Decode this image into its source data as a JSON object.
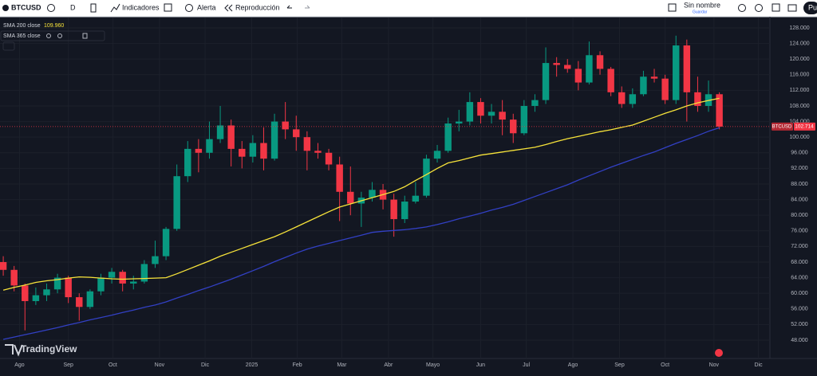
{
  "toolbar": {
    "symbol": "BTCUSD",
    "interval": "D",
    "indicators": "Indicadores",
    "alert": "Alerta",
    "replay": "Reproducción",
    "layout_name": "Sin nombre",
    "save": "Guardar",
    "publish": "Pu"
  },
  "watermark": "TradingView",
  "chart_data": {
    "type": "candlestick",
    "symbol": "BTCUSD",
    "up_color": "#089981",
    "down_color": "#f23645",
    "last_price": {
      "value": 102714,
      "label": "102.714"
    },
    "open": [
      68000,
      66000,
      62000,
      58000,
      59500,
      61000,
      64000,
      59000,
      56500,
      60500,
      64000,
      65500,
      62500,
      63000,
      67500,
      69500,
      76500,
      90000,
      97000,
      96000,
      99500,
      103000,
      97000,
      95000,
      98500,
      94500,
      104000,
      102000,
      100000,
      96500,
      96000,
      93000,
      86000,
      83000,
      84500,
      86500,
      84000,
      79000,
      83500,
      85000,
      94500,
      96500,
      103500,
      104000,
      109000,
      105500,
      106500,
      104500,
      101000,
      108000,
      109500,
      119000,
      118500,
      117500,
      114000,
      121000,
      117500,
      111500,
      108500,
      111000,
      115500,
      115000,
      109500,
      123500,
      111500,
      108000,
      111000
    ],
    "high": [
      69500,
      67000,
      62500,
      61500,
      62500,
      65000,
      64500,
      60000,
      61000,
      65000,
      66500,
      66000,
      64500,
      68500,
      73500,
      77000,
      93000,
      99000,
      99500,
      104000,
      108000,
      104500,
      99000,
      100500,
      102500,
      106000,
      109000,
      105500,
      101500,
      98500,
      97000,
      95000,
      92500,
      86000,
      88500,
      88000,
      85500,
      85000,
      88500,
      95500,
      98000,
      105000,
      107000,
      111500,
      110000,
      108500,
      109500,
      106000,
      109500,
      111000,
      123000,
      120500,
      120000,
      119500,
      124500,
      122000,
      118000,
      113000,
      112500,
      117000,
      117500,
      116000,
      126000,
      125000,
      115500,
      114500,
      111500
    ],
    "low": [
      64500,
      60500,
      50500,
      57000,
      58000,
      60000,
      57500,
      53000,
      56000,
      59500,
      62500,
      60500,
      61000,
      62500,
      66500,
      68500,
      76000,
      88500,
      91000,
      94500,
      98500,
      92500,
      92000,
      93500,
      91500,
      94000,
      99500,
      96500,
      91500,
      94500,
      91500,
      78500,
      80000,
      77000,
      83500,
      81500,
      74500,
      78000,
      83000,
      84500,
      93500,
      96000,
      101500,
      103000,
      103500,
      103500,
      100500,
      98500,
      100500,
      106500,
      108500,
      115500,
      116500,
      112000,
      113500,
      116000,
      110500,
      107500,
      107500,
      110500,
      114000,
      108500,
      108500,
      104000,
      106500,
      106500,
      102000
    ],
    "close": [
      66000,
      62000,
      58000,
      59500,
      61000,
      64000,
      59000,
      56500,
      60500,
      64000,
      65500,
      62500,
      63000,
      67500,
      69500,
      76500,
      90000,
      97000,
      96000,
      99500,
      103000,
      97000,
      95000,
      98500,
      94500,
      104000,
      102000,
      100000,
      96500,
      96000,
      93000,
      86000,
      83000,
      84500,
      86500,
      84000,
      79000,
      83500,
      85000,
      94500,
      96500,
      103500,
      104000,
      109000,
      105500,
      106500,
      104500,
      101000,
      108000,
      109500,
      119000,
      118500,
      117500,
      114000,
      121000,
      117500,
      111500,
      108500,
      111000,
      115500,
      115000,
      109500,
      123500,
      111500,
      108000,
      111000,
      102714
    ],
    "series": [
      {
        "name": "SMA 200 close",
        "color": "#f7e33a",
        "current_value": {
          "value": 109960,
          "label": "109.960"
        },
        "values": [
          60800,
          61500,
          62100,
          62800,
          63200,
          63500,
          63900,
          64200,
          64100,
          63900,
          63700,
          63600,
          63700,
          63800,
          63900,
          64000,
          65000,
          66100,
          67200,
          68300,
          69500,
          70500,
          71500,
          72500,
          73500,
          74500,
          75700,
          77000,
          78300,
          79600,
          80900,
          82100,
          82900,
          83700,
          84500,
          85300,
          86100,
          87300,
          88900,
          90400,
          92000,
          93400,
          94000,
          94700,
          95400,
          95800,
          96200,
          96600,
          97000,
          97400,
          98100,
          98900,
          99600,
          100200,
          100800,
          101400,
          101900,
          102500,
          103100,
          104100,
          105100,
          106100,
          107000,
          108000,
          108800,
          109400,
          109960
        ]
      },
      {
        "name": "SMA 365 close",
        "color": "#3240c4",
        "values": [
          48200,
          48800,
          49400,
          50000,
          50600,
          51200,
          51900,
          52500,
          53200,
          53800,
          54400,
          55100,
          55700,
          56400,
          57000,
          57800,
          58800,
          59700,
          60700,
          61600,
          62600,
          63600,
          64700,
          65800,
          66900,
          68100,
          69200,
          70300,
          71300,
          72100,
          72800,
          73500,
          74200,
          74900,
          75600,
          75900,
          76100,
          76300,
          76600,
          77000,
          77600,
          78300,
          79100,
          79800,
          80500,
          81300,
          82000,
          82800,
          83800,
          84800,
          85800,
          86800,
          87800,
          89000,
          90100,
          91200,
          92300,
          93300,
          94300,
          95300,
          96200,
          97300,
          98400,
          99400,
          100400,
          101500,
          102400
        ]
      }
    ],
    "xlim": [
      -0.3,
      70.66
    ],
    "xticks": [
      {
        "value": 1.5,
        "label": "Ago"
      },
      {
        "value": 6,
        "label": "Sep"
      },
      {
        "value": 10.1,
        "label": "Oct"
      },
      {
        "value": 14.4,
        "label": "Nov"
      },
      {
        "value": 18.6,
        "label": "Dic"
      },
      {
        "value": 22.9,
        "label": "2025"
      },
      {
        "value": 27.1,
        "label": "Feb"
      },
      {
        "value": 31.2,
        "label": "Mar"
      },
      {
        "value": 35.5,
        "label": "Abr"
      },
      {
        "value": 39.6,
        "label": "Mayo"
      },
      {
        "value": 44,
        "label": "Jun"
      },
      {
        "value": 48.2,
        "label": "Jul"
      },
      {
        "value": 52.5,
        "label": "Ago"
      },
      {
        "value": 56.8,
        "label": "Sep"
      },
      {
        "value": 61,
        "label": "Oct"
      },
      {
        "value": 65.5,
        "label": "Nov"
      },
      {
        "value": 69.6,
        "label": "Dic"
      }
    ],
    "ylim": [
      43300,
      130650
    ],
    "yticks": [
      {
        "value": 48000,
        "label": "48.000"
      },
      {
        "value": 52000,
        "label": "52.000"
      },
      {
        "value": 56000,
        "label": "56.000"
      },
      {
        "value": 60000,
        "label": "60.000"
      },
      {
        "value": 64000,
        "label": "64.000"
      },
      {
        "value": 68000,
        "label": "68.000"
      },
      {
        "value": 72000,
        "label": "72.000"
      },
      {
        "value": 76000,
        "label": "76.000"
      },
      {
        "value": 80000,
        "label": "80.000"
      },
      {
        "value": 84000,
        "label": "84.000"
      },
      {
        "value": 88000,
        "label": "88.000"
      },
      {
        "value": 92000,
        "label": "92.000"
      },
      {
        "value": 96000,
        "label": "96.000"
      },
      {
        "value": 100000,
        "label": "100.000"
      },
      {
        "value": 104000,
        "label": "104.000"
      },
      {
        "value": 108000,
        "label": "108.000"
      },
      {
        "value": 112000,
        "label": "112.000"
      },
      {
        "value": 116000,
        "label": "116.000"
      },
      {
        "value": 120000,
        "label": "120.000"
      },
      {
        "value": 124000,
        "label": "124.000"
      },
      {
        "value": 128000,
        "label": "128.000"
      }
    ],
    "grid": true
  }
}
